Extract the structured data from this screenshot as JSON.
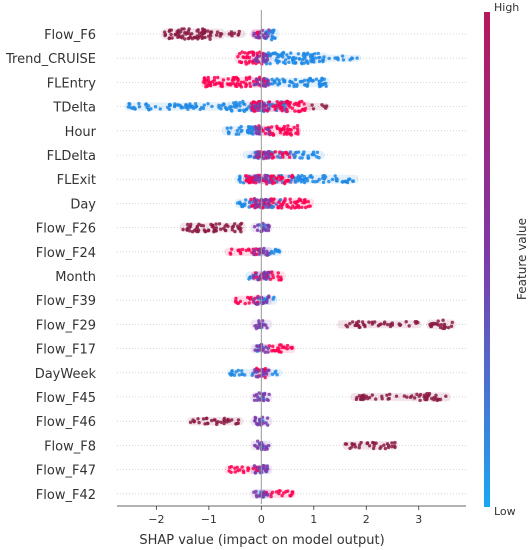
{
  "chart_data": {
    "type": "scatter",
    "subtype": "shap-beeswarm",
    "xlabel": "SHAP value (impact on model output)",
    "xlim": [
      -2.75,
      3.9
    ],
    "xticks": [
      -2,
      -1,
      0,
      1,
      2,
      3
    ],
    "colorbar": {
      "label": "Feature value",
      "high_label": "High",
      "low_label": "Low",
      "low_color": "#1e88e5",
      "mid_color": "#7c3aaa",
      "high_color": "#ff0052",
      "dark_high_color": "#8b1a44"
    },
    "features": [
      {
        "name": "Flow_F6",
        "low": [
          [
            0.05,
            0.28,
            0.9
          ]
        ],
        "high": [
          [
            -1.85,
            -0.75,
            0.8
          ],
          [
            -0.65,
            -0.35,
            0.3
          ],
          [
            -0.15,
            -0.02,
            0.6
          ]
        ]
      },
      {
        "name": "Trend_CRUISE",
        "low": [
          [
            0.05,
            1.2,
            0.9
          ],
          [
            1.2,
            1.85,
            0.2
          ]
        ],
        "high": [
          [
            -0.45,
            0.05,
            1.0
          ]
        ]
      },
      {
        "name": "FLEntry",
        "low": [
          [
            0.0,
            1.25,
            0.6
          ]
        ],
        "high": [
          [
            -1.1,
            0.1,
            0.8
          ]
        ]
      },
      {
        "name": "TDelta",
        "low": [
          [
            -2.55,
            -0.6,
            0.4
          ],
          [
            -0.6,
            0.5,
            0.8
          ]
        ],
        "high": [
          [
            -0.2,
            0.9,
            0.8
          ],
          [
            0.9,
            1.25,
            0.2
          ]
        ]
      },
      {
        "name": "Hour",
        "low": [
          [
            -0.7,
            -0.05,
            0.6
          ]
        ],
        "high": [
          [
            -0.05,
            0.7,
            0.8
          ]
        ]
      },
      {
        "name": "FLDelta",
        "low": [
          [
            -0.3,
            1.15,
            0.4
          ]
        ],
        "high": [
          [
            -0.1,
            0.6,
            0.4
          ]
        ]
      },
      {
        "name": "FLExit",
        "low": [
          [
            -0.45,
            1.8,
            0.5
          ]
        ],
        "high": [
          [
            -0.3,
            0.6,
            0.7
          ]
        ]
      },
      {
        "name": "Day",
        "low": [
          [
            -0.45,
            0.4,
            0.6
          ]
        ],
        "high": [
          [
            -0.2,
            0.95,
            0.7
          ]
        ]
      },
      {
        "name": "Flow_F26",
        "low": [
          [
            -0.05,
            0.1,
            0.4
          ]
        ],
        "high": [
          [
            -1.5,
            -0.35,
            0.6
          ]
        ]
      },
      {
        "name": "Flow_F24",
        "low": [
          [
            -0.05,
            0.35,
            0.4
          ]
        ],
        "high": [
          [
            -0.65,
            0.0,
            0.4
          ]
        ]
      },
      {
        "name": "Month",
        "low": [
          [
            -0.25,
            0.15,
            0.5
          ]
        ],
        "high": [
          [
            -0.15,
            0.4,
            0.6
          ]
        ]
      },
      {
        "name": "Flow_F39",
        "low": [
          [
            -0.05,
            0.25,
            0.5
          ]
        ],
        "high": [
          [
            -0.5,
            -0.05,
            0.5
          ]
        ]
      },
      {
        "name": "Flow_F29",
        "low": [
          [
            -0.05,
            0.05,
            0.4
          ]
        ],
        "high": [
          [
            1.5,
            2.05,
            0.4
          ],
          [
            2.1,
            3.0,
            0.3
          ],
          [
            3.2,
            3.65,
            0.6
          ]
        ]
      },
      {
        "name": "Flow_F17",
        "low": [
          [
            -0.1,
            0.05,
            0.4
          ]
        ],
        "high": [
          [
            0.05,
            0.6,
            0.5
          ]
        ]
      },
      {
        "name": "DayWeek",
        "low": [
          [
            -0.6,
            0.35,
            0.3
          ]
        ],
        "high": [
          [
            -0.1,
            0.1,
            0.7
          ]
        ]
      },
      {
        "name": "Flow_F45",
        "low": [
          [
            -0.05,
            0.05,
            0.4
          ]
        ],
        "high": [
          [
            1.75,
            2.9,
            0.3
          ],
          [
            2.9,
            3.55,
            0.5
          ]
        ]
      },
      {
        "name": "Flow_F46",
        "low": [
          [
            -0.05,
            0.05,
            0.4
          ]
        ],
        "high": [
          [
            -1.35,
            -0.4,
            0.4
          ]
        ]
      },
      {
        "name": "Flow_F8",
        "low": [
          [
            -0.05,
            0.05,
            0.4
          ]
        ],
        "high": [
          [
            1.6,
            2.55,
            0.4
          ]
        ]
      },
      {
        "name": "Flow_F47",
        "low": [
          [
            -0.05,
            0.1,
            0.4
          ]
        ],
        "high": [
          [
            -0.65,
            -0.05,
            0.4
          ]
        ]
      },
      {
        "name": "Flow_F42",
        "low": [
          [
            -0.05,
            0.05,
            0.4
          ]
        ],
        "high": [
          [
            0.05,
            0.6,
            0.4
          ]
        ]
      }
    ]
  }
}
